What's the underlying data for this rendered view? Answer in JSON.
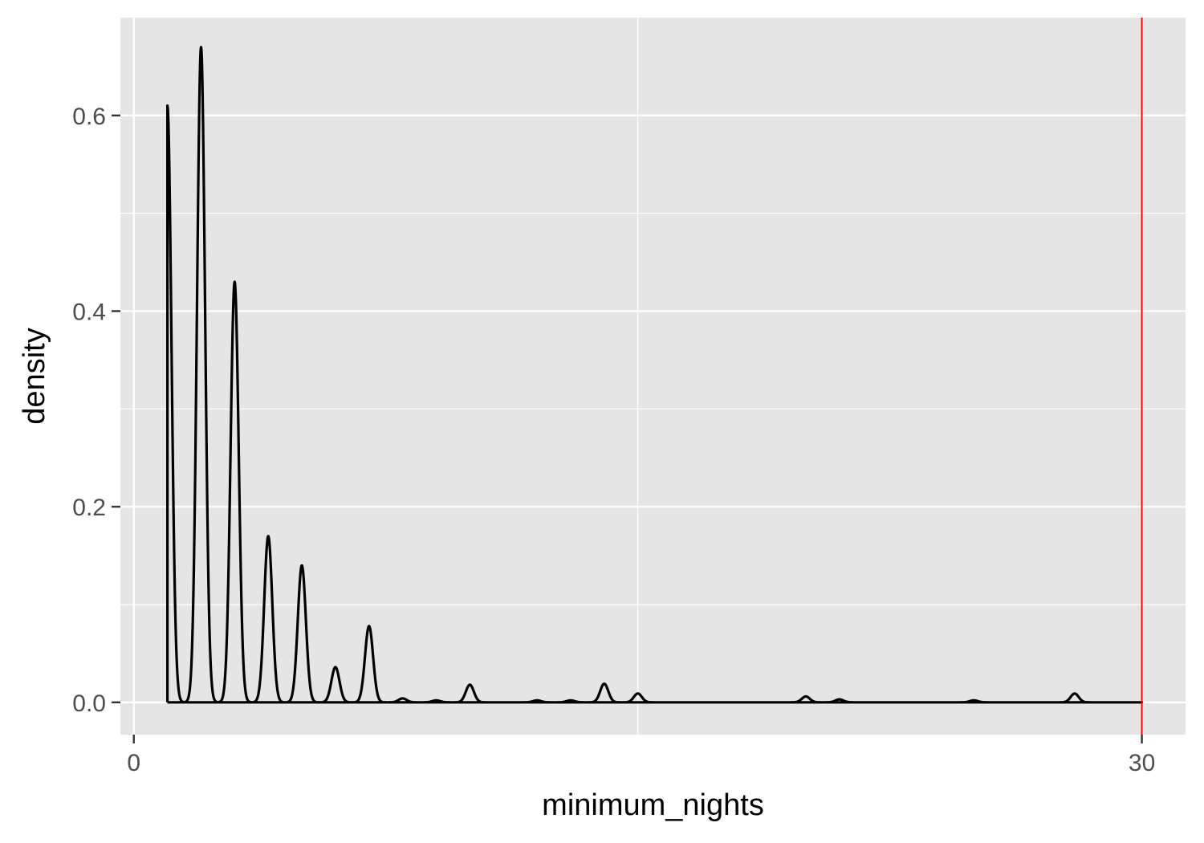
{
  "chart_data": {
    "type": "area",
    "title": "",
    "xlabel": "minimum_nights",
    "ylabel": "density",
    "xlim": [
      -0.4,
      31.3
    ],
    "ylim": [
      -0.033,
      0.7
    ],
    "x_ticks": [
      0,
      30
    ],
    "x_tick_labels": [
      "0",
      "30"
    ],
    "x_minor_ticks": [
      15
    ],
    "y_ticks": [
      0.0,
      0.2,
      0.4,
      0.6
    ],
    "y_tick_labels": [
      "0.0",
      "0.2",
      "0.4",
      "0.6"
    ],
    "y_minor_ticks": [
      0.1,
      0.3,
      0.5
    ],
    "grid": true,
    "legend": "none",
    "bandwidth": 0.12,
    "support": [
      1,
      29.6
    ],
    "peaks": [
      {
        "x": 1,
        "y": 0.61
      },
      {
        "x": 2,
        "y": 0.67
      },
      {
        "x": 3,
        "y": 0.43
      },
      {
        "x": 4,
        "y": 0.17
      },
      {
        "x": 5,
        "y": 0.14
      },
      {
        "x": 6,
        "y": 0.036
      },
      {
        "x": 7,
        "y": 0.078
      },
      {
        "x": 8,
        "y": 0.004
      },
      {
        "x": 9,
        "y": 0.002
      },
      {
        "x": 10,
        "y": 0.018
      },
      {
        "x": 12,
        "y": 0.002
      },
      {
        "x": 13,
        "y": 0.002
      },
      {
        "x": 14,
        "y": 0.019
      },
      {
        "x": 15,
        "y": 0.009
      },
      {
        "x": 20,
        "y": 0.006
      },
      {
        "x": 21,
        "y": 0.003
      },
      {
        "x": 25,
        "y": 0.002
      },
      {
        "x": 28,
        "y": 0.009
      }
    ],
    "vline": {
      "x": 30,
      "color": "#ff0000"
    },
    "colors": {
      "panel_background": "#e5e5e5",
      "gridline": "#ffffff",
      "curve": "#000000",
      "tick_text": "#4d4d4d"
    }
  }
}
